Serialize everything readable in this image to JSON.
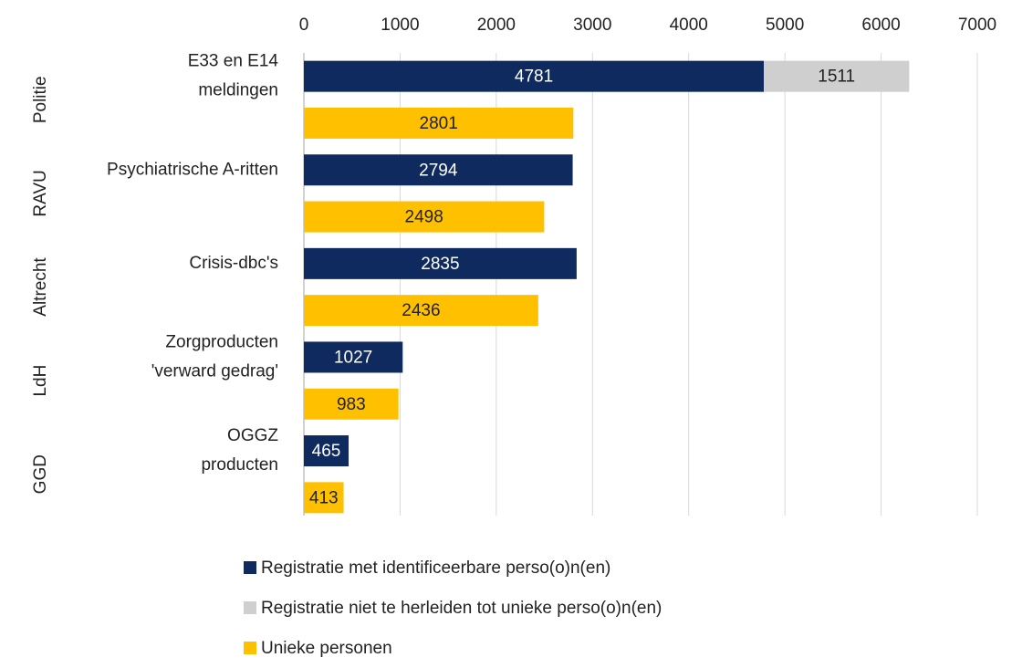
{
  "chart_data": {
    "type": "stacked_bar_horizontal",
    "categories": [
      [
        "E33 en E14",
        "meldingen"
      ],
      null,
      [
        "Psychiatrische A-ritten"
      ],
      null,
      [
        "Crisis-dbc's"
      ],
      null,
      [
        "Zorgproducten",
        "'verward gedrag'"
      ],
      null,
      [
        "OGGZ",
        "producten"
      ],
      null
    ],
    "groups": [
      "Politie",
      "RAVU",
      "Altrecht",
      "LdH",
      "GGD"
    ],
    "series": [
      {
        "name": "Registratie met identificeerbare perso(o)n(en)",
        "color": "#0e2a5e",
        "values": [
          4781,
          null,
          2794,
          null,
          2835,
          null,
          1027,
          null,
          465,
          null
        ]
      },
      {
        "name": "Registratie niet te herleiden tot unieke perso(o)n(en)",
        "color": "#d0cfd0",
        "values": [
          1511,
          null,
          null,
          null,
          null,
          null,
          null,
          null,
          null,
          null
        ]
      },
      {
        "name": "Unieke personen",
        "color": "#ffc000",
        "values": [
          null,
          2801,
          null,
          2498,
          null,
          2436,
          null,
          983,
          null,
          413
        ]
      }
    ],
    "xlim": [
      0,
      7000
    ],
    "xticks": [
      0,
      1000,
      2000,
      3000,
      4000,
      5000,
      6000,
      7000
    ],
    "grid": true,
    "legend": "bottom"
  }
}
